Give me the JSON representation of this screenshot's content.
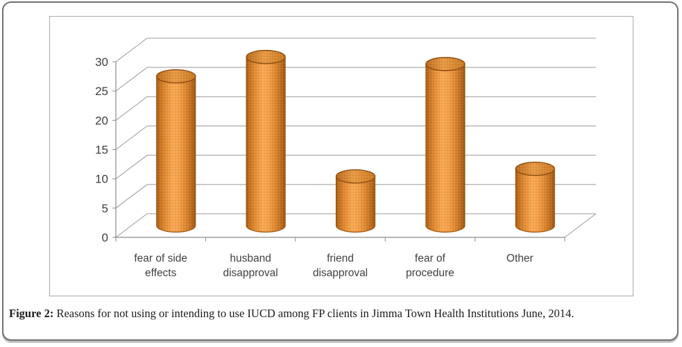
{
  "figure": {
    "caption_label": "Figure 2:",
    "caption_text": "Reasons for not using or intending to use IUCD among FP clients in Jimma Town Health Institutions June, 2014."
  },
  "chart_data": {
    "type": "bar",
    "subtype": "3d-cylinder",
    "title": "",
    "xlabel": "",
    "ylabel": "",
    "categories": [
      "fear of side effects",
      "husband disapproval",
      "friend disapproval",
      "fear of procedure",
      "Other"
    ],
    "values": [
      25.5,
      28.8,
      8.4,
      27.6,
      9.7
    ],
    "yticks": [
      0,
      5,
      10,
      15,
      20,
      25,
      30
    ],
    "ylim": [
      0,
      30
    ],
    "grid": true,
    "legend": false,
    "bar_fill_color": "#ef9742",
    "bar_highlight_color": "#f7a853",
    "bar_edge_color": "#8b4a10",
    "gridline_color": "#999999",
    "axis_color": "#8a8a8a",
    "tick_label_color": "#3d3d3d"
  }
}
